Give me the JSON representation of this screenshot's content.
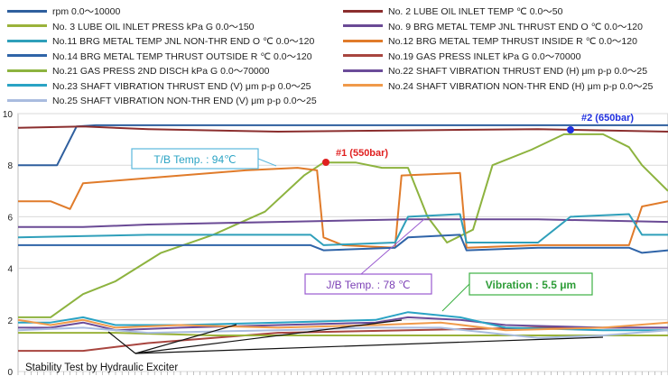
{
  "chart_data": {
    "type": "line",
    "caption": "Stability Test by Hydraulic  Exciter",
    "y_ticks": [
      "0",
      "2",
      "4",
      "6",
      "8",
      "10"
    ],
    "ylim": [
      0,
      10
    ],
    "xlim": [
      0,
      100
    ],
    "grid": true,
    "legend_position": "top",
    "legend": [
      {
        "label": "rpm 0.0～10000",
        "color": "#2f5f9e"
      },
      {
        "label": "No. 2   LUBE OIL INLET TEMP  ℃ 0.0～50",
        "color": "#8b2e2e"
      },
      {
        "label": "No. 3   LUBE OIL INLET PRESS  kPa G  0.0～150",
        "color": "#9ab23a"
      },
      {
        "label": "No. 9   BRG METAL TEMP JNL THRUST END  O  ℃ 0.0～120",
        "color": "#6a4a95"
      },
      {
        "label": "No.11   BRG METAL TEMP JNL NON-THR END O  ℃ 0.0～120",
        "color": "#2f9fba"
      },
      {
        "label": "No.12   BRG METAL TEMP THRUST INSIDE   R  ℃ 0.0～120",
        "color": "#e07b2a"
      },
      {
        "label": "No.14   BRG METAL TEMP THRUST OUTSIDE  R  ℃ 0.0～120",
        "color": "#2f64a8"
      },
      {
        "label": "No.19   GAS PRESS INLET  kPa G 0.0～70000",
        "color": "#a8453f"
      },
      {
        "label": "No.21   GAS PRESS 2ND DISCH  kPa G  0.0～70000",
        "color": "#8db33f"
      },
      {
        "label": "No.22   SHAFT VIBRATION THRUST END  (H)   μm p-p   0.0～25",
        "color": "#6b4c99"
      },
      {
        "label": "No.23   SHAFT VIBRATION THRUST END  (V)   μm p-p  0.0～25",
        "color": "#2aa3c4"
      },
      {
        "label": "No.24   SHAFT VIBRATION NON-THR END (H)  μm p-p   0.0～25",
        "color": "#f09a4a"
      },
      {
        "label": "No.25   SHAFT VIBRATION NON-THR END (V)  μm p-p   0.0～25",
        "color": "#a9bcdf"
      }
    ],
    "annotations": {
      "tb_temp": "T/B Temp. : 94℃",
      "jb_temp": "J/B Temp. : 78 ℃",
      "vibration": "Vibration : 5.5 μm",
      "point1": "#1 (550bar)",
      "point2": "#2 (650bar)"
    },
    "series": [
      {
        "name": "rpm",
        "color": "#2f5f9e",
        "points": [
          [
            0,
            8.0
          ],
          [
            6,
            8.0
          ],
          [
            9,
            9.5
          ],
          [
            12,
            9.55
          ],
          [
            100,
            9.55
          ]
        ]
      },
      {
        "name": "No. 2",
        "color": "#8b2e2e",
        "points": [
          [
            0,
            9.45
          ],
          [
            10,
            9.5
          ],
          [
            20,
            9.4
          ],
          [
            40,
            9.3
          ],
          [
            60,
            9.35
          ],
          [
            80,
            9.4
          ],
          [
            100,
            9.3
          ]
        ]
      },
      {
        "name": "No. 21",
        "color": "#8db33f",
        "points": [
          [
            0,
            2.1
          ],
          [
            5,
            2.1
          ],
          [
            10,
            3.0
          ],
          [
            15,
            3.5
          ],
          [
            22,
            4.6
          ],
          [
            30,
            5.3
          ],
          [
            38,
            6.2
          ],
          [
            44,
            7.6
          ],
          [
            47,
            8.1
          ],
          [
            52,
            8.1
          ],
          [
            56,
            7.9
          ],
          [
            60,
            7.9
          ],
          [
            63,
            6.0
          ],
          [
            66,
            5.0
          ],
          [
            70,
            5.5
          ],
          [
            73,
            8.0
          ],
          [
            79,
            8.6
          ],
          [
            84,
            9.2
          ],
          [
            90,
            9.2
          ],
          [
            94,
            8.7
          ],
          [
            96,
            8.0
          ],
          [
            100,
            7.0
          ]
        ]
      },
      {
        "name": "No. 12",
        "color": "#e07b2a",
        "points": [
          [
            0,
            6.6
          ],
          [
            5,
            6.6
          ],
          [
            8,
            6.3
          ],
          [
            10,
            7.3
          ],
          [
            15,
            7.4
          ],
          [
            25,
            7.6
          ],
          [
            35,
            7.8
          ],
          [
            43,
            7.9
          ],
          [
            46,
            7.8
          ],
          [
            47,
            5.2
          ],
          [
            50,
            4.9
          ],
          [
            58,
            4.8
          ],
          [
            59,
            7.6
          ],
          [
            68,
            7.7
          ],
          [
            69,
            4.8
          ],
          [
            80,
            4.9
          ],
          [
            94,
            4.9
          ],
          [
            96,
            6.4
          ],
          [
            100,
            6.6
          ]
        ]
      },
      {
        "name": "No. 9",
        "color": "#6a4a95",
        "points": [
          [
            0,
            5.6
          ],
          [
            10,
            5.6
          ],
          [
            20,
            5.7
          ],
          [
            40,
            5.8
          ],
          [
            60,
            5.9
          ],
          [
            80,
            5.9
          ],
          [
            100,
            5.8
          ]
        ]
      },
      {
        "name": "No. 11",
        "color": "#2f9fba",
        "points": [
          [
            0,
            5.2
          ],
          [
            20,
            5.3
          ],
          [
            45,
            5.3
          ],
          [
            47,
            4.9
          ],
          [
            58,
            5.0
          ],
          [
            60,
            6.0
          ],
          [
            68,
            6.1
          ],
          [
            69,
            5.0
          ],
          [
            80,
            5.0
          ],
          [
            85,
            6.0
          ],
          [
            94,
            6.1
          ],
          [
            96,
            5.3
          ],
          [
            100,
            5.3
          ]
        ]
      },
      {
        "name": "No. 14",
        "color": "#2f64a8",
        "points": [
          [
            0,
            4.9
          ],
          [
            20,
            4.9
          ],
          [
            45,
            4.9
          ],
          [
            47,
            4.7
          ],
          [
            58,
            4.8
          ],
          [
            60,
            5.2
          ],
          [
            68,
            5.3
          ],
          [
            69,
            4.7
          ],
          [
            80,
            4.8
          ],
          [
            94,
            4.8
          ],
          [
            96,
            4.6
          ],
          [
            100,
            4.7
          ]
        ]
      },
      {
        "name": "No. 19",
        "color": "#a8453f",
        "points": [
          [
            0,
            0.8
          ],
          [
            10,
            0.8
          ],
          [
            20,
            1.1
          ],
          [
            40,
            1.5
          ],
          [
            60,
            1.6
          ],
          [
            80,
            1.7
          ],
          [
            100,
            1.7
          ]
        ]
      },
      {
        "name": "No. 3",
        "color": "#9ab23a",
        "points": [
          [
            0,
            1.5
          ],
          [
            15,
            1.5
          ],
          [
            30,
            1.4
          ],
          [
            50,
            1.4
          ],
          [
            70,
            1.4
          ],
          [
            100,
            1.4
          ]
        ]
      },
      {
        "name": "No. 22",
        "color": "#6b4c99",
        "points": [
          [
            0,
            1.7
          ],
          [
            5,
            1.7
          ],
          [
            10,
            1.9
          ],
          [
            15,
            1.6
          ],
          [
            25,
            1.7
          ],
          [
            40,
            1.8
          ],
          [
            55,
            1.9
          ],
          [
            60,
            2.1
          ],
          [
            68,
            2.0
          ],
          [
            75,
            1.8
          ],
          [
            90,
            1.7
          ],
          [
            100,
            1.7
          ]
        ]
      },
      {
        "name": "No. 23",
        "color": "#2aa3c4",
        "points": [
          [
            0,
            1.9
          ],
          [
            5,
            1.9
          ],
          [
            10,
            2.1
          ],
          [
            15,
            1.8
          ],
          [
            25,
            1.8
          ],
          [
            40,
            1.9
          ],
          [
            55,
            2.0
          ],
          [
            60,
            2.3
          ],
          [
            68,
            2.1
          ],
          [
            75,
            1.7
          ],
          [
            90,
            1.6
          ],
          [
            100,
            1.6
          ]
        ]
      },
      {
        "name": "No. 24",
        "color": "#f09a4a",
        "points": [
          [
            0,
            2.0
          ],
          [
            5,
            1.8
          ],
          [
            10,
            2.0
          ],
          [
            15,
            1.7
          ],
          [
            25,
            1.8
          ],
          [
            40,
            1.7
          ],
          [
            55,
            1.8
          ],
          [
            65,
            1.9
          ],
          [
            75,
            1.6
          ],
          [
            90,
            1.7
          ],
          [
            100,
            1.9
          ]
        ]
      },
      {
        "name": "No. 25",
        "color": "#a9bcdf",
        "points": [
          [
            0,
            1.6
          ],
          [
            10,
            1.7
          ],
          [
            20,
            1.5
          ],
          [
            40,
            1.6
          ],
          [
            55,
            1.7
          ],
          [
            65,
            1.7
          ],
          [
            80,
            1.3
          ],
          [
            90,
            1.4
          ],
          [
            100,
            1.6
          ]
        ]
      }
    ]
  }
}
